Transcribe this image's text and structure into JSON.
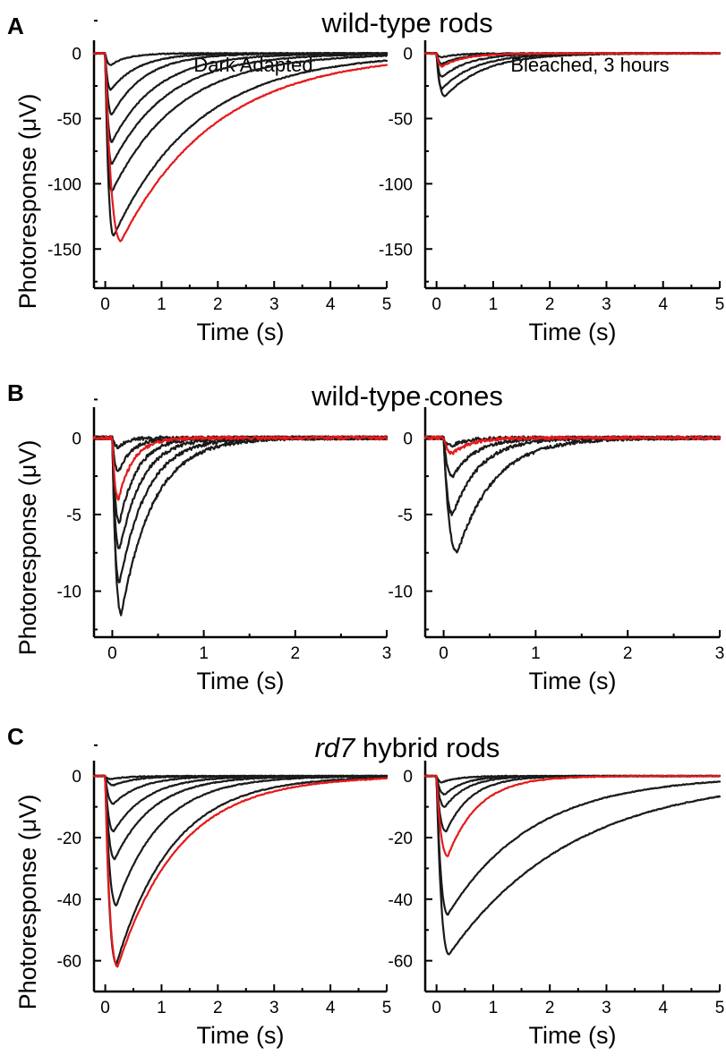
{
  "colors": {
    "trace": "#1a1a1a",
    "highlight": "#e41a1c",
    "axis": "#000000"
  },
  "rows": [
    {
      "letter": "A",
      "title_text": "wild-type rods",
      "ylabel": "Photoresponse (μV)",
      "panels": [
        {
          "subtitle": "Dark Adapted"
        },
        {
          "subtitle": "Bleached, 3 hours"
        }
      ]
    },
    {
      "letter": "B",
      "title_text": "wild-type cones",
      "ylabel": "Photoresponse (μV)",
      "panels": [
        {
          "subtitle": ""
        },
        {
          "subtitle": ""
        }
      ]
    },
    {
      "letter": "C",
      "title_italic": "rd7",
      "title_rest": " hybrid rods",
      "ylabel": "Photoresponse (μV)",
      "panels": [
        {
          "subtitle": ""
        },
        {
          "subtitle": ""
        }
      ]
    }
  ],
  "chart_data": [
    {
      "type": "line",
      "row": 0,
      "col": 0,
      "subtitle": "Dark Adapted",
      "xlabel": "Time (s)",
      "ylabel": "Photoresponse (μV)",
      "xlim": [
        -0.2,
        5
      ],
      "ylim": [
        -180,
        10
      ],
      "xticks": [
        0,
        1,
        2,
        3,
        4,
        5
      ],
      "yticks": [
        0,
        -50,
        -100,
        -150
      ],
      "series": [
        {
          "peak": -9,
          "tp": 0.1,
          "tau": 0.3,
          "color": "black"
        },
        {
          "peak": -28,
          "tp": 0.1,
          "tau": 0.5,
          "color": "black"
        },
        {
          "peak": -47,
          "tp": 0.12,
          "tau": 0.6,
          "color": "black"
        },
        {
          "peak": -68,
          "tp": 0.12,
          "tau": 0.8,
          "color": "black"
        },
        {
          "peak": -85,
          "tp": 0.12,
          "tau": 1.0,
          "color": "black"
        },
        {
          "peak": -106,
          "tp": 0.12,
          "tau": 1.2,
          "color": "black"
        },
        {
          "peak": -140,
          "tp": 0.15,
          "tau": 1.5,
          "color": "black"
        },
        {
          "peak": -144,
          "tp": 0.28,
          "tau": 1.7,
          "color": "red"
        }
      ]
    },
    {
      "type": "line",
      "row": 0,
      "col": 1,
      "subtitle": "Bleached, 3 hours",
      "xlabel": "Time (s)",
      "ylabel": "",
      "xlim": [
        -0.2,
        5
      ],
      "ylim": [
        -180,
        10
      ],
      "xticks": [
        0,
        1,
        2,
        3,
        4,
        5
      ],
      "yticks": [
        0,
        -50,
        -100,
        -150
      ],
      "series": [
        {
          "peak": -3,
          "tp": 0.1,
          "tau": 0.3,
          "color": "black"
        },
        {
          "peak": -8,
          "tp": 0.1,
          "tau": 0.4,
          "color": "black"
        },
        {
          "peak": -10,
          "tp": 0.1,
          "tau": 0.4,
          "color": "red"
        },
        {
          "peak": -18,
          "tp": 0.1,
          "tau": 0.5,
          "color": "black"
        },
        {
          "peak": -27,
          "tp": 0.1,
          "tau": 0.6,
          "color": "black"
        },
        {
          "peak": -33,
          "tp": 0.15,
          "tau": 0.7,
          "color": "black"
        }
      ]
    },
    {
      "type": "line",
      "row": 1,
      "col": 0,
      "subtitle": "",
      "xlabel": "Time (s)",
      "ylabel": "Photoresponse (μV)",
      "xlim": [
        -0.2,
        3
      ],
      "ylim": [
        -13,
        2
      ],
      "xticks": [
        0,
        1,
        2,
        3
      ],
      "yticks": [
        0,
        -5,
        -10
      ],
      "series": [
        {
          "peak": -0.6,
          "tp": 0.07,
          "tau": 0.1,
          "color": "black"
        },
        {
          "peak": -2.2,
          "tp": 0.07,
          "tau": 0.15,
          "color": "black"
        },
        {
          "peak": -4.0,
          "tp": 0.07,
          "tau": 0.16,
          "color": "red"
        },
        {
          "peak": -5.5,
          "tp": 0.08,
          "tau": 0.2,
          "color": "black"
        },
        {
          "peak": -7.3,
          "tp": 0.08,
          "tau": 0.25,
          "color": "black"
        },
        {
          "peak": -9.5,
          "tp": 0.08,
          "tau": 0.3,
          "color": "black"
        },
        {
          "peak": -11.5,
          "tp": 0.1,
          "tau": 0.35,
          "color": "black"
        }
      ]
    },
    {
      "type": "line",
      "row": 1,
      "col": 1,
      "subtitle": "",
      "xlabel": "Time (s)",
      "ylabel": "",
      "xlim": [
        -0.2,
        3
      ],
      "ylim": [
        -13,
        2
      ],
      "xticks": [
        0,
        1,
        2,
        3
      ],
      "yticks": [
        0,
        -5,
        -10
      ],
      "series": [
        {
          "peak": -0.5,
          "tp": 0.1,
          "tau": 0.15,
          "color": "black"
        },
        {
          "peak": -1.0,
          "tp": 0.1,
          "tau": 0.2,
          "color": "red"
        },
        {
          "peak": -2.5,
          "tp": 0.1,
          "tau": 0.25,
          "color": "black"
        },
        {
          "peak": -5.0,
          "tp": 0.1,
          "tau": 0.3,
          "color": "black"
        },
        {
          "peak": -7.5,
          "tp": 0.15,
          "tau": 0.4,
          "color": "black"
        }
      ]
    },
    {
      "type": "line",
      "row": 2,
      "col": 0,
      "subtitle": "",
      "xlabel": "Time (s)",
      "ylabel": "Photoresponse (μV)",
      "xlim": [
        -0.2,
        5
      ],
      "ylim": [
        -70,
        5
      ],
      "xticks": [
        0,
        1,
        2,
        3,
        4,
        5
      ],
      "yticks": [
        0,
        -20,
        -40,
        -60
      ],
      "series": [
        {
          "peak": -1,
          "tp": 0.1,
          "tau": 0.3,
          "color": "black"
        },
        {
          "peak": -3,
          "tp": 0.15,
          "tau": 0.4,
          "color": "black"
        },
        {
          "peak": -9,
          "tp": 0.15,
          "tau": 0.5,
          "color": "black"
        },
        {
          "peak": -18,
          "tp": 0.15,
          "tau": 0.6,
          "color": "black"
        },
        {
          "peak": -27,
          "tp": 0.17,
          "tau": 0.7,
          "color": "black"
        },
        {
          "peak": -42,
          "tp": 0.2,
          "tau": 0.8,
          "color": "black"
        },
        {
          "peak": -61,
          "tp": 0.2,
          "tau": 1.0,
          "color": "black"
        },
        {
          "peak": -62,
          "tp": 0.22,
          "tau": 1.1,
          "color": "red"
        }
      ]
    },
    {
      "type": "line",
      "row": 2,
      "col": 1,
      "subtitle": "",
      "xlabel": "Time (s)",
      "ylabel": "",
      "xlim": [
        -0.2,
        5
      ],
      "ylim": [
        -70,
        5
      ],
      "xticks": [
        0,
        1,
        2,
        3,
        4,
        5
      ],
      "yticks": [
        0,
        -20,
        -40,
        -60
      ],
      "series": [
        {
          "peak": -2,
          "tp": 0.1,
          "tau": 0.3,
          "color": "black"
        },
        {
          "peak": -6,
          "tp": 0.15,
          "tau": 0.35,
          "color": "black"
        },
        {
          "peak": -10,
          "tp": 0.15,
          "tau": 0.4,
          "color": "black"
        },
        {
          "peak": -18,
          "tp": 0.17,
          "tau": 0.45,
          "color": "black"
        },
        {
          "peak": -26,
          "tp": 0.2,
          "tau": 0.55,
          "color": "red"
        },
        {
          "peak": -45,
          "tp": 0.2,
          "tau": 1.5,
          "color": "black"
        },
        {
          "peak": -58,
          "tp": 0.22,
          "tau": 2.2,
          "color": "black"
        }
      ]
    }
  ]
}
